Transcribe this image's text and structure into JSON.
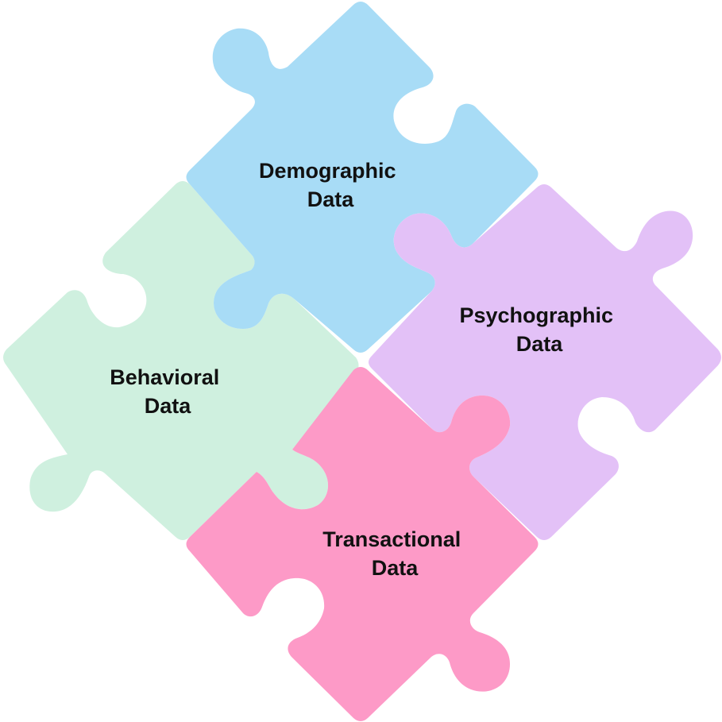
{
  "pieces": [
    {
      "id": "demographic",
      "lines": [
        "Demographic",
        "Data"
      ],
      "color": "#a8dcf6"
    },
    {
      "id": "psychographic",
      "lines": [
        "Psychographic",
        "Data"
      ],
      "color": "#e3c1f7"
    },
    {
      "id": "behavioral",
      "lines": [
        "Behavioral",
        "Data"
      ],
      "color": "#cff0df"
    },
    {
      "id": "transactional",
      "lines": [
        "Transactional",
        "Data"
      ],
      "color": "#fd9ac7"
    }
  ]
}
